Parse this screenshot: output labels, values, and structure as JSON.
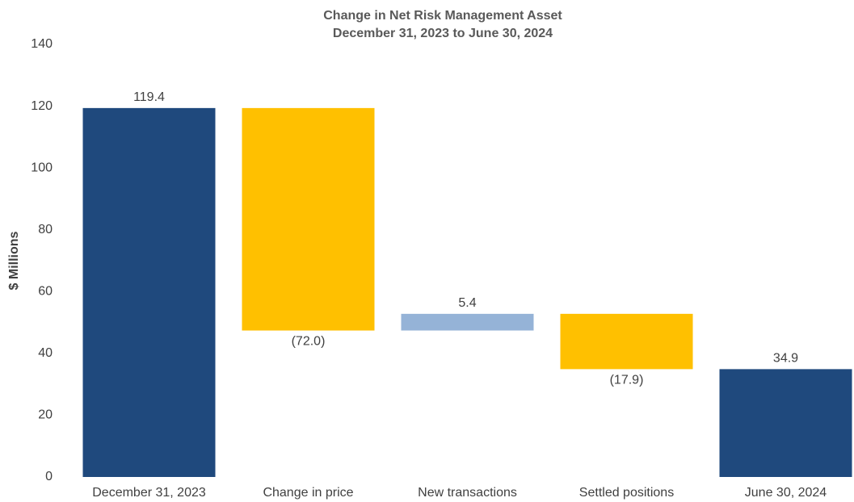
{
  "chart_data": {
    "type": "waterfall",
    "title": "Change in Net Risk Management Asset",
    "subtitle": "December 31, 2023 to June 30, 2024",
    "ylabel": "$ Millions",
    "categories": [
      "December 31, 2023",
      "Change in price",
      "New transactions",
      "Settled positions",
      "June 30, 2024"
    ],
    "values": [
      119.4,
      -72.0,
      5.4,
      -17.9,
      34.9
    ],
    "value_labels": [
      "119.4",
      "(72.0)",
      "5.4",
      "(17.9)",
      "34.9"
    ],
    "measure": [
      "total",
      "relative",
      "relative",
      "relative",
      "total"
    ],
    "colors": [
      "#1f497d",
      "#ffc000",
      "#95b3d7",
      "#ffc000",
      "#1f497d"
    ],
    "ylim": [
      0,
      140
    ],
    "yticks": [
      0,
      20,
      40,
      60,
      80,
      100,
      120,
      140
    ],
    "grid": false
  }
}
